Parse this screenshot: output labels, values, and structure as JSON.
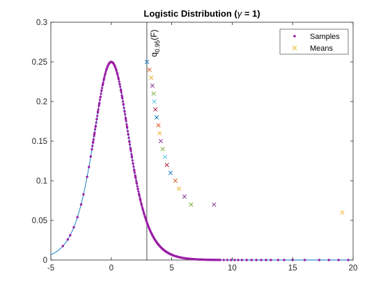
{
  "chart_data": {
    "type": "line",
    "title_prefix": "Logistic Distribution (",
    "title_symbol": "γ",
    "title_suffix": " = 1)",
    "xlabel": "",
    "ylabel": "",
    "xlim": [
      -5,
      20
    ],
    "ylim": [
      0,
      0.3
    ],
    "xticks": [
      -5,
      0,
      5,
      10,
      15,
      20
    ],
    "xtick_labels": [
      "-5",
      "0",
      "5",
      "10",
      "15",
      "20"
    ],
    "yticks": [
      0,
      0.05,
      0.1,
      0.15,
      0.2,
      0.25,
      0.3
    ],
    "ytick_labels": [
      "0",
      "0.05",
      "0.1",
      "0.15",
      "0.2",
      "0.25",
      "0.3"
    ],
    "grid": false,
    "legend_location": "top-right",
    "quantile_line": {
      "x": 2.944,
      "label_base": "q",
      "label_sub": "0.95",
      "label_tail": "(F)"
    },
    "pdf_curve": {
      "name": "",
      "color": "#0072BD",
      "x_range": [
        -5,
        20
      ],
      "scale": 1
    },
    "series": [
      {
        "name": "Samples",
        "color": "#9B1FA6",
        "marker": "dot",
        "x": [
          -4.0,
          -3.6,
          -3.4,
          -3.1,
          -2.8,
          -2.5,
          -2.3,
          -2.0,
          -1.85,
          -1.7,
          -1.6,
          -1.5,
          -1.4,
          -1.3,
          -1.2,
          -1.1,
          -1.0,
          -0.9,
          -0.8,
          -0.7,
          -0.6,
          -0.5,
          -0.4,
          -0.3,
          -0.2,
          -0.1,
          0.0,
          0.1,
          0.2,
          0.3,
          0.4,
          0.5,
          0.6,
          0.7,
          0.8,
          0.9,
          1.0,
          1.1,
          1.2,
          1.3,
          1.4,
          1.5,
          1.6,
          1.7,
          1.8,
          1.9,
          2.0,
          2.1,
          2.2,
          2.3,
          2.4,
          2.5,
          2.6,
          2.7,
          2.8,
          2.9,
          3.0,
          3.1,
          3.2,
          3.3,
          3.4,
          3.5,
          3.6,
          3.7,
          3.8,
          3.9,
          4.0,
          4.1,
          4.2,
          4.3,
          4.4,
          4.5,
          4.6,
          4.7,
          4.8,
          4.9,
          5.0,
          5.2,
          5.4,
          5.6,
          5.8,
          6.0,
          6.2,
          6.4,
          6.6,
          6.8,
          7.0,
          7.2,
          7.4,
          7.6,
          7.8,
          8.0,
          8.2,
          8.4,
          8.6,
          8.8,
          9.0,
          9.3,
          9.6,
          9.9,
          10.2,
          10.5,
          10.8,
          11.2,
          11.6,
          12.0,
          12.4,
          12.8,
          13.2,
          13.8,
          14.3,
          15.0,
          16.0,
          17.2,
          18.0,
          18.8,
          19.6
        ]
      },
      {
        "name": "Means",
        "marker": "x",
        "colors": [
          "#0072BD",
          "#D95319",
          "#EDB120",
          "#7E2F8E",
          "#77AC30",
          "#4DBEEE",
          "#A2142F"
        ],
        "points": [
          [
            2.95,
            0.25
          ],
          [
            3.15,
            0.24
          ],
          [
            3.3,
            0.23
          ],
          [
            3.4,
            0.22
          ],
          [
            3.5,
            0.21
          ],
          [
            3.55,
            0.2
          ],
          [
            3.65,
            0.19
          ],
          [
            3.75,
            0.18
          ],
          [
            3.9,
            0.17
          ],
          [
            4.0,
            0.16
          ],
          [
            4.1,
            0.15
          ],
          [
            4.25,
            0.14
          ],
          [
            4.45,
            0.13
          ],
          [
            4.6,
            0.12
          ],
          [
            4.9,
            0.11
          ],
          [
            5.3,
            0.1
          ],
          [
            5.6,
            0.09
          ],
          [
            6.05,
            0.08
          ],
          [
            6.6,
            0.07
          ]
        ],
        "extra_points": [
          [
            8.5,
            0.07
          ],
          [
            19.1,
            0.06
          ]
        ],
        "extra_colors": [
          "#7E2F8E",
          "#EDB120"
        ]
      }
    ]
  }
}
